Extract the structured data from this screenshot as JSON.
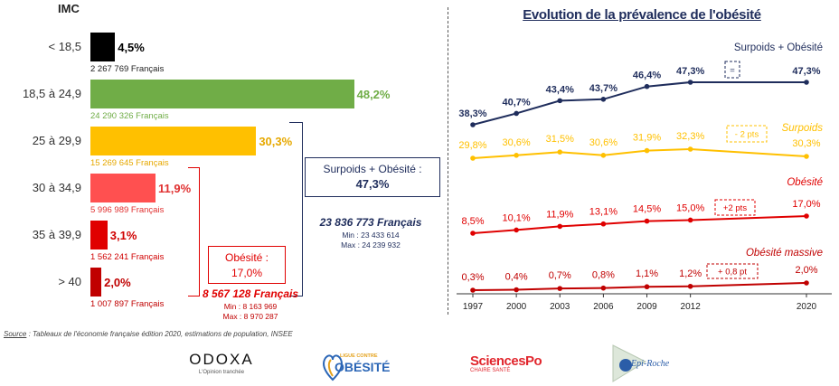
{
  "left": {
    "imc_label": "IMC",
    "rows": [
      {
        "category": "< 18,5",
        "percent": "4,5%",
        "value": 4.5,
        "count": "2 267 769 Français",
        "color": "#000000",
        "pct_color": "#000000",
        "count_color": "#222222"
      },
      {
        "category": "18,5 à 24,9",
        "percent": "48,2%",
        "value": 48.2,
        "count": "24 290 326 Français",
        "color": "#70AD47",
        "pct_color": "#70AD47",
        "count_color": "#70AD47"
      },
      {
        "category": "25 à 29,9",
        "percent": "30,3%",
        "value": 30.3,
        "count": "15 269 645 Français",
        "color": "#FFC000",
        "pct_color": "#E6A800",
        "count_color": "#E6A800"
      },
      {
        "category": "30 à 34,9",
        "percent": "11,9%",
        "value": 11.9,
        "count": "5 996 989 Français",
        "color": "#FF5050",
        "pct_color": "#E03030",
        "count_color": "#E03030"
      },
      {
        "category": "35 à 39,9",
        "percent": "3,1%",
        "value": 3.1,
        "count": "1 562 241 Français",
        "color": "#E00000",
        "pct_color": "#D00000",
        "count_color": "#D00000"
      },
      {
        "category": "> 40",
        "percent": "2,0%",
        "value": 2.0,
        "count": "1 007 897 Français",
        "color": "#C00000",
        "pct_color": "#C00000",
        "count_color": "#C00000"
      }
    ],
    "surpoids_obesite_box": {
      "label": "Surpoids + Obésité :",
      "value": "47,3%"
    },
    "total_surpoids": {
      "count": "23 836 773 Français",
      "min": "Min : 23 433 614",
      "max": "Max : 24 239 932"
    },
    "obesite_box": {
      "label": "Obésité :",
      "value": "17,0%"
    },
    "total_obesite": {
      "count": "8 567 128 Français",
      "min": "Min : 8 163 969",
      "max": "Max : 8 970 287"
    },
    "source": {
      "prefix": "Source",
      "text": " : Tableaux de l'économie française édition 2020, estimations de population, INSEE"
    }
  },
  "chart_data": {
    "type": "line",
    "title": "Evolution de la prévalence de l'obésité",
    "x": [
      "1997",
      "2000",
      "2003",
      "2006",
      "2009",
      "2012",
      "2020"
    ],
    "series": [
      {
        "name": "Surpoids + Obésité",
        "values": [
          38.3,
          40.7,
          43.4,
          43.7,
          46.4,
          47.3,
          47.3
        ],
        "labels": [
          "38,3%",
          "40,7%",
          "43,4%",
          "43,7%",
          "46,4%",
          "47,3%",
          "47,3%"
        ],
        "color": "#1F2D5C",
        "change": "="
      },
      {
        "name": "Surpoids",
        "values": [
          29.8,
          30.6,
          31.5,
          30.6,
          31.9,
          32.3,
          30.3
        ],
        "labels": [
          "29,8%",
          "30,6%",
          "31,5%",
          "30,6%",
          "31,9%",
          "32,3%",
          "30,3%"
        ],
        "color": "#FFC000",
        "change": "- 2 pts"
      },
      {
        "name": "Obésité",
        "values": [
          8.5,
          10.1,
          11.9,
          13.1,
          14.5,
          15.0,
          17.0
        ],
        "labels": [
          "8,5%",
          "10,1%",
          "11,9%",
          "13,1%",
          "14,5%",
          "15,0%",
          "17,0%"
        ],
        "color": "#E00000",
        "change": "+2 pts"
      },
      {
        "name": "Obésité massive",
        "values": [
          0.3,
          0.4,
          0.7,
          0.8,
          1.1,
          1.2,
          2.0
        ],
        "labels": [
          "0,3%",
          "0,4%",
          "0,7%",
          "0,8%",
          "1,1%",
          "1,2%",
          "2,0%"
        ],
        "color": "#C00000",
        "change": "+ 0,8 pt"
      }
    ]
  },
  "logos": {
    "odoxa": "ODOXA",
    "odoxa_tag": "L'Opinion tranchée",
    "ligue_small": "LIGUE CONTRE",
    "ligue": "OBÉSITÉ",
    "sciencespo": "SciencesPo",
    "sciencespo_tag": "CHAIRE SANTÉ",
    "roche": "Epi-Roche"
  }
}
